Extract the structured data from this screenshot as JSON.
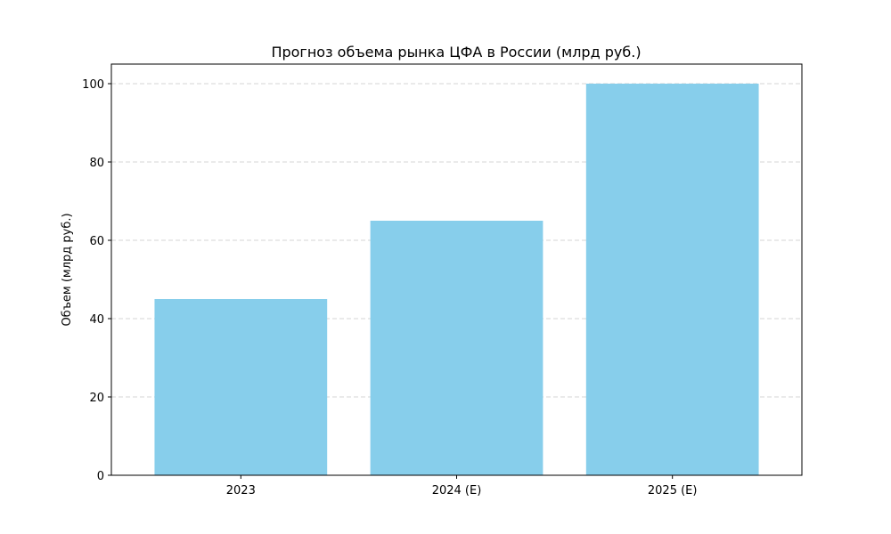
{
  "chart_data": {
    "type": "bar",
    "title": "Прогноз объема рынка ЦФА в России (млрд руб.)",
    "xlabel": "",
    "ylabel": "Объем (млрд руб.)",
    "categories": [
      "2023",
      "2024 (E)",
      "2025 (E)"
    ],
    "values": [
      45,
      65,
      100
    ],
    "ylim": [
      0,
      105
    ],
    "yticks": [
      0,
      20,
      40,
      60,
      80,
      100
    ],
    "grid": "y-dashed",
    "bar_color": "#87CEEB"
  }
}
